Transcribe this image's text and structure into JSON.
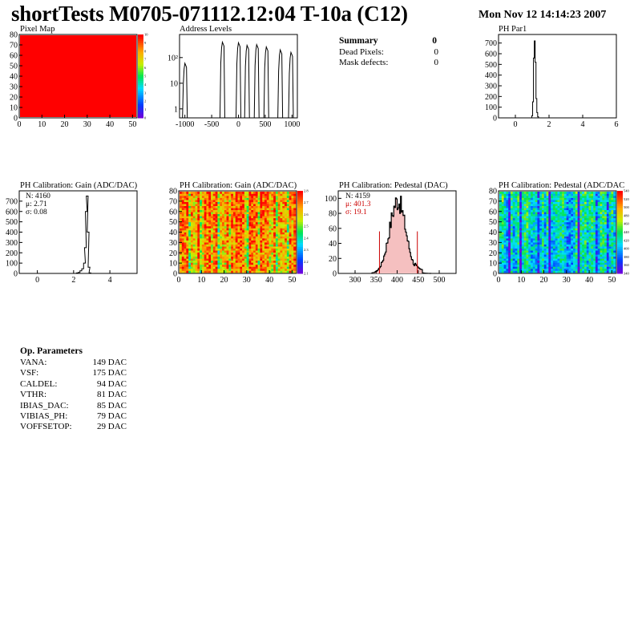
{
  "header": {
    "title": "shortTests M0705-071112.12:04 T-10a (C12)",
    "date": "Mon Nov 12 14:14:23 2007"
  },
  "summary": {
    "title": "Summary",
    "title_value": "0",
    "rows": [
      {
        "label": "Dead Pixels:",
        "value": "0"
      },
      {
        "label": "Mask defects:",
        "value": "0"
      }
    ]
  },
  "op_params": {
    "title": "Op. Parameters",
    "rows": [
      {
        "label": "VANA:",
        "value": "149 DAC"
      },
      {
        "label": "VSF:",
        "value": "175 DAC"
      },
      {
        "label": "CALDEL:",
        "value": "94 DAC"
      },
      {
        "label": "VTHR:",
        "value": "81 DAC"
      },
      {
        "label": "IBIAS_DAC:",
        "value": "85 DAC"
      },
      {
        "label": "VIBIAS_PH:",
        "value": "79 DAC"
      },
      {
        "label": "VOFFSETOP:",
        "value": "29 DAC"
      }
    ]
  },
  "colors": {
    "map_red": "#ff0000",
    "hist_line": "#000000",
    "fit_line": "#cc0000"
  },
  "chart_data": [
    {
      "id": "pixel-map",
      "type": "heatmap",
      "title": "Pixel Map",
      "x_ticks": [
        "0",
        "10",
        "20",
        "30",
        "40",
        "50"
      ],
      "y_ticks": [
        "0",
        "10",
        "20",
        "30",
        "40",
        "50",
        "60",
        "70",
        "80"
      ],
      "xlim": [
        0,
        52
      ],
      "ylim": [
        0,
        80
      ],
      "fill_value": 10,
      "z_ticks": [
        "0",
        "1",
        "2",
        "3",
        "4",
        "5",
        "6",
        "7",
        "8",
        "9",
        "10"
      ]
    },
    {
      "id": "address-levels",
      "type": "bar",
      "title": "Address Levels",
      "log_y": true,
      "x_ticks": [
        "-1000",
        "-500",
        "0",
        "500",
        "1000"
      ],
      "y_tick_labels": [
        "1",
        "10",
        "10²"
      ],
      "xlim": [
        -1100,
        1100
      ],
      "peaks": [
        {
          "x": -1000,
          "h": 60
        },
        {
          "x": -300,
          "h": 400
        },
        {
          "x": 0,
          "h": 380
        },
        {
          "x": 160,
          "h": 300
        },
        {
          "x": 340,
          "h": 320
        },
        {
          "x": 520,
          "h": 260
        },
        {
          "x": 780,
          "h": 200
        },
        {
          "x": 980,
          "h": 160
        }
      ]
    },
    {
      "id": "ph-par1",
      "type": "bar",
      "title": "PH Par1",
      "x_ticks": [
        "0",
        "2",
        "4",
        "6"
      ],
      "y_ticks": [
        "0",
        "100",
        "200",
        "300",
        "400",
        "500",
        "600",
        "700"
      ],
      "xlim": [
        -1,
        6
      ],
      "ylim": [
        0,
        780
      ],
      "x": [
        1.0,
        1.05,
        1.1,
        1.15,
        1.2,
        1.25,
        1.3,
        1.35
      ],
      "values": [
        20,
        150,
        560,
        720,
        520,
        180,
        50,
        10
      ]
    },
    {
      "id": "gain-1d",
      "type": "bar",
      "title": "PH Calibration: Gain (ADC/DAC)",
      "x_ticks": [
        "0",
        "2",
        "4"
      ],
      "y_ticks": [
        "0",
        "100",
        "200",
        "300",
        "400",
        "500",
        "600",
        "700"
      ],
      "xlim": [
        -1,
        5.5
      ],
      "ylim": [
        0,
        800
      ],
      "stats": [
        "N: 4160",
        "μ: 2.71",
        "σ: 0.08"
      ],
      "x": [
        2.2,
        2.3,
        2.4,
        2.5,
        2.6,
        2.65,
        2.7,
        2.75,
        2.8,
        2.85,
        2.9
      ],
      "values": [
        5,
        10,
        25,
        45,
        100,
        250,
        600,
        750,
        400,
        60,
        5
      ]
    },
    {
      "id": "gain-map",
      "type": "heatmap",
      "title": "PH Calibration: Gain (ADC/DAC)",
      "x_ticks": [
        "0",
        "10",
        "20",
        "30",
        "40",
        "50"
      ],
      "y_ticks": [
        "0",
        "10",
        "20",
        "30",
        "40",
        "50",
        "60",
        "70",
        "80"
      ],
      "xlim": [
        0,
        52
      ],
      "ylim": [
        0,
        80
      ],
      "z_ticks": [
        "2.1",
        "2.2",
        "2.3",
        "2.4",
        "2.5",
        "2.6",
        "2.7",
        "2.8"
      ]
    },
    {
      "id": "pedestal-1d",
      "type": "bar",
      "title": "PH Calibration: Pedestal (DAC)",
      "x_ticks": [
        "300",
        "350",
        "400",
        "450",
        "500"
      ],
      "y_ticks": [
        "0",
        "20",
        "40",
        "60",
        "80",
        "100"
      ],
      "xlim": [
        260,
        540
      ],
      "ylim": [
        0,
        110
      ],
      "stats": [
        "N: 4159",
        "μ: 401.3",
        "σ: 19.1"
      ],
      "fit_lines": [
        358,
        448
      ],
      "mean": 401.3,
      "sigma": 19.1,
      "peak": 97
    },
    {
      "id": "pedestal-map",
      "type": "heatmap",
      "title": "PH Calibration: Pedestal (ADC/DAC",
      "x_ticks": [
        "0",
        "10",
        "20",
        "30",
        "40",
        "50"
      ],
      "y_ticks": [
        "0",
        "10",
        "20",
        "30",
        "40",
        "50",
        "60",
        "70",
        "80"
      ],
      "xlim": [
        0,
        52
      ],
      "ylim": [
        0,
        80
      ],
      "z_ticks": [
        "340",
        "360",
        "380",
        "400",
        "420",
        "440",
        "460",
        "480",
        "500",
        "520",
        "540"
      ]
    }
  ]
}
